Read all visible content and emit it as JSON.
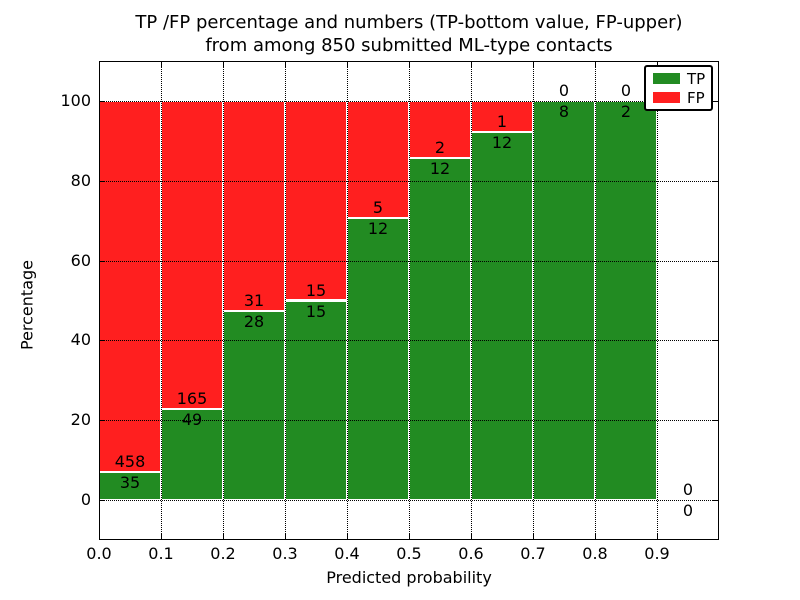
{
  "figure": {
    "title_line1": "TP /FP percentage and numbers (TP-bottom value, FP-upper)",
    "title_line2": "from among 850 submitted ML-type contacts",
    "xlabel": "Predicted probability",
    "ylabel": "Percentage",
    "background": "#ffffff"
  },
  "legend": {
    "position": "upper right",
    "items": [
      {
        "label": "TP",
        "color": "#228B22"
      },
      {
        "label": "FP",
        "color": "#ff1f1f"
      }
    ]
  },
  "chart_data": {
    "type": "bar",
    "stacked": true,
    "normalization": "each 0.1-wide bin scaled to 100%",
    "title": "TP /FP percentage and numbers (TP-bottom value, FP-upper) from among 850 submitted ML-type contacts",
    "xlabel": "Predicted probability",
    "ylabel": "Percentage",
    "total_contacts": 850,
    "bin_width": 0.1,
    "bin_starts": [
      0.0,
      0.1,
      0.2,
      0.3,
      0.4,
      0.5,
      0.6,
      0.7,
      0.8,
      0.9
    ],
    "xtick_labels": [
      "0.0",
      "0.1",
      "0.2",
      "0.3",
      "0.4",
      "0.5",
      "0.6",
      "0.7",
      "0.8",
      "0.9"
    ],
    "ytick_values": [
      0,
      20,
      40,
      60,
      80,
      100
    ],
    "xlim": [
      0.0,
      1.0
    ],
    "ylim": [
      -10,
      110
    ],
    "grid": {
      "style": "dotted",
      "color": "#000000",
      "on": true
    },
    "bar_edge_color": "#ffffff",
    "series": [
      {
        "name": "TP",
        "color": "#228B22",
        "counts": [
          35,
          49,
          28,
          15,
          12,
          12,
          12,
          8,
          2,
          0
        ]
      },
      {
        "name": "FP",
        "color": "#ff1f1f",
        "counts": [
          458,
          165,
          31,
          15,
          5,
          2,
          1,
          0,
          0,
          0
        ]
      }
    ],
    "tp_percent": [
      7.1,
      22.9,
      47.46,
      50.0,
      70.59,
      85.71,
      92.31,
      100.0,
      100.0,
      0.0
    ],
    "legend_position": "upper right"
  }
}
